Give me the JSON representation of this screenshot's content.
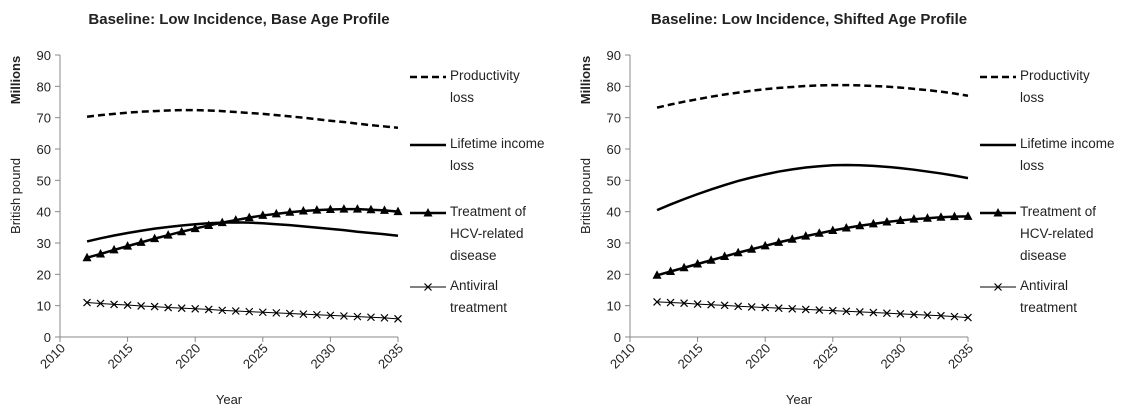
{
  "chart_data": [
    {
      "type": "line",
      "title": "Baseline: Low Incidence, Base Age Profile",
      "x_label": "Year",
      "y_label": "British pound",
      "y_unit_label": "Millions",
      "x": [
        2012,
        2013,
        2014,
        2015,
        2016,
        2017,
        2018,
        2019,
        2020,
        2021,
        2022,
        2023,
        2024,
        2025,
        2026,
        2027,
        2028,
        2029,
        2030,
        2031,
        2032,
        2033,
        2034,
        2035
      ],
      "xlim": [
        2010,
        2035
      ],
      "xticks": [
        2010,
        2015,
        2020,
        2025,
        2030,
        2035
      ],
      "ylim": [
        0,
        90
      ],
      "yticks": [
        0,
        10,
        20,
        30,
        40,
        50,
        60,
        70,
        80,
        90
      ],
      "series": [
        {
          "name": "Productivity loss",
          "color": "#000000",
          "line_style": "dashed",
          "values": [
            70.3,
            70.8,
            71.2,
            71.6,
            71.9,
            72.1,
            72.3,
            72.4,
            72.4,
            72.3,
            72.1,
            71.8,
            71.5,
            71.2,
            70.8,
            70.4,
            70.0,
            69.5,
            69.0,
            68.6,
            68.1,
            67.6,
            67.2,
            66.8
          ]
        },
        {
          "name": "Lifetime income loss",
          "color": "#000000",
          "line_style": "solid",
          "values": [
            30.5,
            31.5,
            32.4,
            33.2,
            33.9,
            34.6,
            35.1,
            35.6,
            36.0,
            36.3,
            36.5,
            36.6,
            36.5,
            36.3,
            36.0,
            35.7,
            35.3,
            34.9,
            34.5,
            34.1,
            33.6,
            33.2,
            32.8,
            32.3
          ]
        },
        {
          "name": "Treatment of HCV-related disease",
          "color": "#000000",
          "line_style": "solid",
          "marker": "triangle",
          "values": [
            25.3,
            26.5,
            27.8,
            29.0,
            30.2,
            31.4,
            32.5,
            33.6,
            34.6,
            35.6,
            36.5,
            37.3,
            38.1,
            38.8,
            39.3,
            39.8,
            40.2,
            40.5,
            40.7,
            40.8,
            40.8,
            40.6,
            40.4,
            40.0
          ]
        },
        {
          "name": "Antiviral treatment",
          "color": "#000000",
          "line_style": "solid",
          "marker": "x",
          "values": [
            11.0,
            10.7,
            10.4,
            10.2,
            9.9,
            9.7,
            9.4,
            9.2,
            9.0,
            8.8,
            8.5,
            8.3,
            8.1,
            7.9,
            7.7,
            7.5,
            7.3,
            7.1,
            6.9,
            6.7,
            6.5,
            6.3,
            6.1,
            5.8
          ]
        }
      ]
    },
    {
      "type": "line",
      "title": "Baseline: Low Incidence, Shifted Age Profile",
      "x_label": "Year",
      "y_label": "British pound",
      "y_unit_label": "Millions",
      "x": [
        2012,
        2013,
        2014,
        2015,
        2016,
        2017,
        2018,
        2019,
        2020,
        2021,
        2022,
        2023,
        2024,
        2025,
        2026,
        2027,
        2028,
        2029,
        2030,
        2031,
        2032,
        2033,
        2034,
        2035
      ],
      "xlim": [
        2010,
        2035
      ],
      "xticks": [
        2010,
        2015,
        2020,
        2025,
        2030,
        2035
      ],
      "ylim": [
        0,
        90
      ],
      "yticks": [
        0,
        10,
        20,
        30,
        40,
        50,
        60,
        70,
        80,
        90
      ],
      "series": [
        {
          "name": "Productivity loss",
          "color": "#000000",
          "line_style": "dashed",
          "values": [
            73.2,
            74.2,
            75.1,
            75.9,
            76.7,
            77.4,
            78.0,
            78.6,
            79.1,
            79.5,
            79.8,
            80.1,
            80.3,
            80.4,
            80.4,
            80.3,
            80.1,
            79.9,
            79.6,
            79.2,
            78.8,
            78.3,
            77.7,
            77.0
          ]
        },
        {
          "name": "Lifetime income loss",
          "color": "#000000",
          "line_style": "solid",
          "values": [
            40.5,
            42.3,
            44.0,
            45.6,
            47.1,
            48.5,
            49.8,
            50.9,
            51.9,
            52.8,
            53.5,
            54.1,
            54.5,
            54.8,
            54.9,
            54.8,
            54.6,
            54.3,
            53.9,
            53.4,
            52.8,
            52.2,
            51.5,
            50.7
          ]
        },
        {
          "name": "Treatment of HCV-related disease",
          "color": "#000000",
          "line_style": "solid",
          "marker": "triangle",
          "values": [
            19.7,
            20.9,
            22.1,
            23.3,
            24.5,
            25.7,
            26.9,
            28.0,
            29.1,
            30.2,
            31.2,
            32.2,
            33.1,
            34.0,
            34.8,
            35.5,
            36.1,
            36.7,
            37.2,
            37.6,
            37.9,
            38.2,
            38.4,
            38.5
          ]
        },
        {
          "name": "Antiviral treatment",
          "color": "#000000",
          "line_style": "solid",
          "marker": "x",
          "values": [
            11.2,
            11.0,
            10.8,
            10.5,
            10.3,
            10.1,
            9.8,
            9.6,
            9.4,
            9.2,
            9.0,
            8.8,
            8.6,
            8.4,
            8.2,
            8.0,
            7.8,
            7.6,
            7.4,
            7.2,
            7.0,
            6.8,
            6.5,
            6.2
          ]
        }
      ]
    }
  ]
}
